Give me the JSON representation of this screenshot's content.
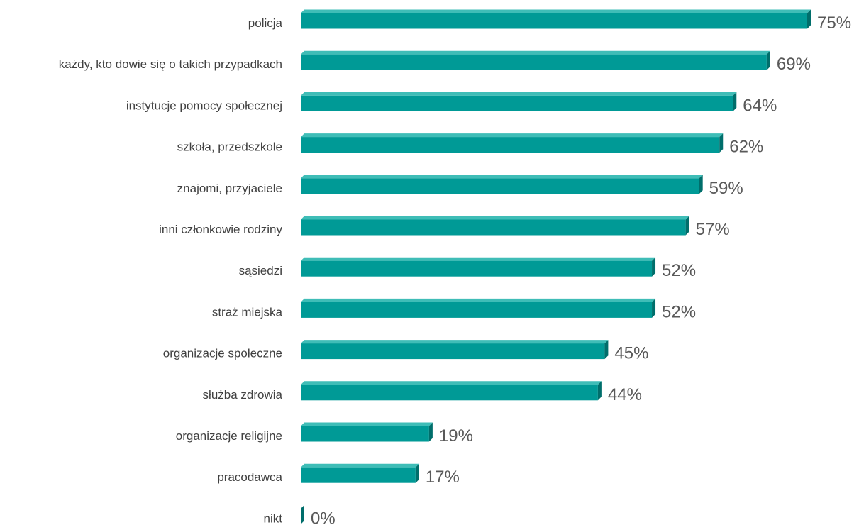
{
  "chart_data": {
    "type": "bar",
    "orientation": "horizontal",
    "categories": [
      "policja",
      "każdy, kto dowie się o takich przypadkach",
      "instytucje pomocy społecznej",
      "szkoła, przedszkole",
      "znajomi, przyjaciele",
      "inni członkowie rodziny",
      "sąsiedzi",
      "straż miejska",
      "organizacje społeczne",
      "służba zdrowia",
      "organizacje religijne",
      "pracodawca",
      "nikt"
    ],
    "values": [
      75,
      69,
      64,
      62,
      59,
      57,
      52,
      52,
      45,
      44,
      19,
      17,
      0
    ],
    "value_labels": [
      "75%",
      "69%",
      "64%",
      "62%",
      "59%",
      "57%",
      "52%",
      "52%",
      "45%",
      "44%",
      "19%",
      "17%",
      "0%"
    ],
    "title": "",
    "xlabel": "",
    "ylabel": "",
    "xlim": [
      0,
      75
    ],
    "grid": false,
    "legend": "none",
    "colors": {
      "bar_front": "#009a96",
      "bar_top": "#3fbdb7",
      "bar_side": "#006e6b",
      "category_text": "#404040",
      "value_text": "#595959"
    }
  }
}
